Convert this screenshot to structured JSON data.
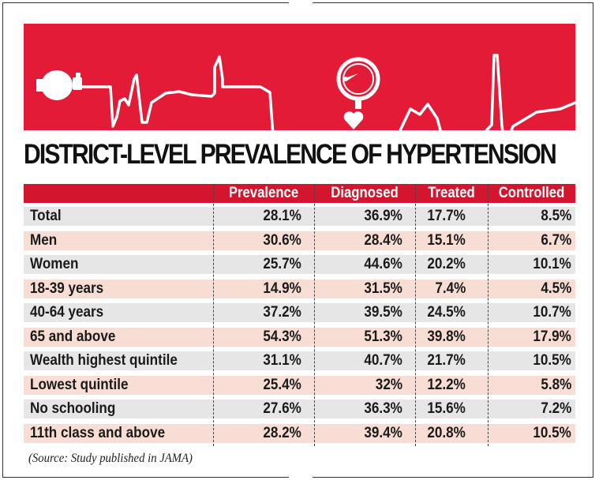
{
  "title": "DISTRICT-LEVEL PREVALENCE OF HYPERTENSION",
  "source": "(Source: Study published in JAMA)",
  "colors": {
    "banner": "#e31b37",
    "header": "#d3162e",
    "row_gray": "#e6e6e6",
    "row_pink": "#f7ddd3"
  },
  "banner_icons": [
    "bp-bulb-icon",
    "ecg-line-icon",
    "pressure-gauge-icon",
    "heart-icon"
  ],
  "chart_data": {
    "type": "table",
    "title": "DISTRICT-LEVEL PREVALENCE OF HYPERTENSION",
    "columns": [
      "Prevalence",
      "Diagnosed",
      "Treated",
      "Controlled"
    ],
    "rows": [
      {
        "label": "Total",
        "values": [
          "28.1%",
          "36.9%",
          "17.7%",
          "8.5%"
        ]
      },
      {
        "label": "Men",
        "values": [
          "30.6%",
          "28.4%",
          "15.1%",
          "6.7%"
        ]
      },
      {
        "label": "Women",
        "values": [
          "25.7%",
          "44.6%",
          "20.2%",
          "10.1%"
        ]
      },
      {
        "label": "18-39 years",
        "values": [
          "14.9%",
          "31.5%",
          "7.4%",
          "4.5%"
        ]
      },
      {
        "label": "40-64 years",
        "values": [
          "37.2%",
          "39.5%",
          "24.5%",
          "10.7%"
        ]
      },
      {
        "label": "65 and above",
        "values": [
          "54.3%",
          "51.3%",
          "39.8%",
          "17.9%"
        ]
      },
      {
        "label": "Wealth highest quintile",
        "values": [
          "31.1%",
          "40.7%",
          "21.7%",
          "10.5%"
        ]
      },
      {
        "label": "Lowest quintile",
        "values": [
          "25.4%",
          "32%",
          "12.2%",
          "5.8%"
        ]
      },
      {
        "label": "No schooling",
        "values": [
          "27.6%",
          "36.3%",
          "15.6%",
          "7.2%"
        ]
      },
      {
        "label": "11th class and above",
        "values": [
          "28.2%",
          "39.4%",
          "20.8%",
          "10.5%"
        ]
      }
    ],
    "source": "(Source: Study published in JAMA)"
  }
}
